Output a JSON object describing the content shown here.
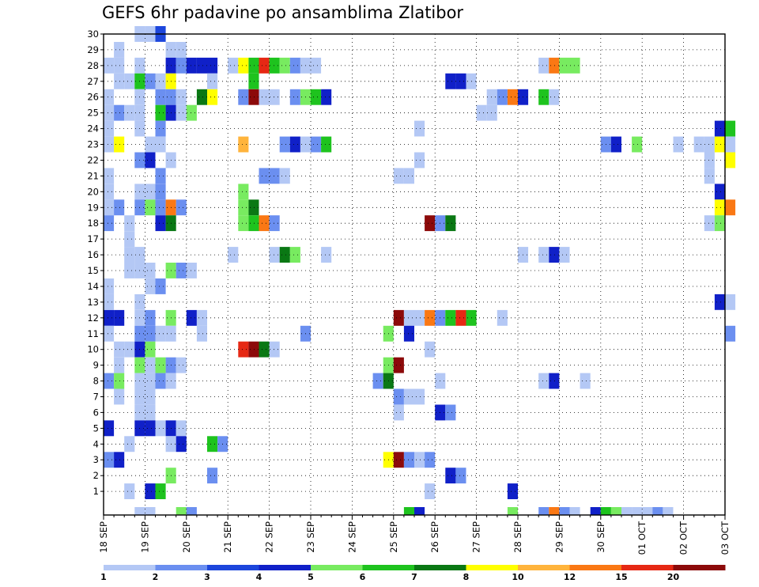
{
  "chart_data": {
    "type": "heatmap",
    "title": "GEFS 6hr padavine po ansamblima Zlatibor",
    "y_ticks": [
      "1",
      "2",
      "3",
      "4",
      "5",
      "6",
      "7",
      "8",
      "9",
      "10",
      "11",
      "12",
      "13",
      "14",
      "15",
      "16",
      "17",
      "18",
      "19",
      "20",
      "21",
      "22",
      "23",
      "24",
      "25",
      "26",
      "27",
      "28",
      "29",
      "30"
    ],
    "x_ticks": [
      "18 SEP",
      "19 SEP",
      "20 SEP",
      "21 SEP",
      "22 SEP",
      "23 SEP",
      "24 SEP",
      "25 SEP",
      "26 SEP",
      "27 SEP",
      "28 SEP",
      "29 SEP",
      "30 SEP",
      "01 OCT",
      "02 OCT",
      "03 OCT"
    ],
    "x_unit": "6-hour steps",
    "grid": "dotted",
    "colorbar": {
      "labels": [
        "1",
        "2",
        "3",
        "4",
        "5",
        "6",
        "7",
        "8",
        "10",
        "12",
        "15",
        "20"
      ],
      "colors": [
        "#b4c8f5",
        "#6b8ff0",
        "#1c46dc",
        "#1020c8",
        "#78eb60",
        "#1ec31e",
        "#0a7814",
        "#ffff00",
        "#ffb43c",
        "#fa7814",
        "#e62814",
        "#8c0a0a"
      ]
    },
    "cells": [
      [
        30,
        3,
        1
      ],
      [
        30,
        4,
        1
      ],
      [
        30,
        5,
        3
      ],
      [
        29,
        1,
        1
      ],
      [
        29,
        6,
        1
      ],
      [
        29,
        7,
        1
      ],
      [
        28,
        0,
        1
      ],
      [
        28,
        1,
        1
      ],
      [
        28,
        3,
        1
      ],
      [
        28,
        6,
        4
      ],
      [
        28,
        7,
        2
      ],
      [
        28,
        8,
        4
      ],
      [
        28,
        9,
        4
      ],
      [
        28,
        10,
        4
      ],
      [
        28,
        12,
        1
      ],
      [
        28,
        13,
        8
      ],
      [
        28,
        14,
        6
      ],
      [
        28,
        15,
        11
      ],
      [
        28,
        16,
        6
      ],
      [
        28,
        17,
        5
      ],
      [
        28,
        18,
        2
      ],
      [
        28,
        19,
        1
      ],
      [
        28,
        20,
        1
      ],
      [
        28,
        42,
        1
      ],
      [
        28,
        43,
        10
      ],
      [
        28,
        44,
        5
      ],
      [
        28,
        45,
        5
      ],
      [
        27,
        1,
        1
      ],
      [
        27,
        2,
        1
      ],
      [
        27,
        3,
        6
      ],
      [
        27,
        4,
        2
      ],
      [
        27,
        5,
        1
      ],
      [
        27,
        6,
        8
      ],
      [
        27,
        10,
        1
      ],
      [
        27,
        14,
        6
      ],
      [
        27,
        33,
        4
      ],
      [
        27,
        34,
        4
      ],
      [
        27,
        35,
        1
      ],
      [
        26,
        0,
        1
      ],
      [
        26,
        3,
        1
      ],
      [
        26,
        5,
        2
      ],
      [
        26,
        6,
        2
      ],
      [
        26,
        7,
        1
      ],
      [
        26,
        9,
        7
      ],
      [
        26,
        10,
        8
      ],
      [
        26,
        13,
        2
      ],
      [
        26,
        14,
        12
      ],
      [
        26,
        15,
        1
      ],
      [
        26,
        16,
        1
      ],
      [
        26,
        18,
        2
      ],
      [
        26,
        19,
        5
      ],
      [
        26,
        20,
        6
      ],
      [
        26,
        21,
        4
      ],
      [
        26,
        37,
        1
      ],
      [
        26,
        38,
        2
      ],
      [
        26,
        39,
        10
      ],
      [
        26,
        40,
        4
      ],
      [
        26,
        42,
        6
      ],
      [
        26,
        43,
        1
      ],
      [
        25,
        0,
        1
      ],
      [
        25,
        1,
        2
      ],
      [
        25,
        2,
        1
      ],
      [
        25,
        3,
        1
      ],
      [
        25,
        5,
        6
      ],
      [
        25,
        6,
        4
      ],
      [
        25,
        7,
        1
      ],
      [
        25,
        8,
        5
      ],
      [
        25,
        36,
        1
      ],
      [
        25,
        37,
        1
      ],
      [
        24,
        0,
        1
      ],
      [
        24,
        3,
        1
      ],
      [
        24,
        5,
        2
      ],
      [
        24,
        30,
        1
      ],
      [
        24,
        59,
        4
      ],
      [
        24,
        60,
        6
      ],
      [
        23,
        0,
        1
      ],
      [
        23,
        1,
        8
      ],
      [
        23,
        4,
        1
      ],
      [
        23,
        5,
        1
      ],
      [
        23,
        13,
        9
      ],
      [
        23,
        17,
        2
      ],
      [
        23,
        18,
        4
      ],
      [
        23,
        19,
        1
      ],
      [
        23,
        20,
        2
      ],
      [
        23,
        21,
        6
      ],
      [
        23,
        48,
        2
      ],
      [
        23,
        49,
        4
      ],
      [
        23,
        51,
        5
      ],
      [
        23,
        55,
        1
      ],
      [
        23,
        57,
        1
      ],
      [
        23,
        58,
        1
      ],
      [
        23,
        59,
        8
      ],
      [
        23,
        60,
        1
      ],
      [
        22,
        3,
        2
      ],
      [
        22,
        4,
        4
      ],
      [
        22,
        6,
        1
      ],
      [
        22,
        30,
        1
      ],
      [
        22,
        58,
        1
      ],
      [
        22,
        60,
        8
      ],
      [
        21,
        0,
        1
      ],
      [
        21,
        5,
        2
      ],
      [
        21,
        15,
        2
      ],
      [
        21,
        16,
        2
      ],
      [
        21,
        17,
        1
      ],
      [
        21,
        28,
        1
      ],
      [
        21,
        29,
        1
      ],
      [
        21,
        58,
        1
      ],
      [
        20,
        0,
        1
      ],
      [
        20,
        3,
        1
      ],
      [
        20,
        4,
        1
      ],
      [
        20,
        5,
        2
      ],
      [
        20,
        13,
        5
      ],
      [
        20,
        59,
        4
      ],
      [
        19,
        0,
        1
      ],
      [
        19,
        1,
        2
      ],
      [
        19,
        3,
        2
      ],
      [
        19,
        4,
        5
      ],
      [
        19,
        5,
        2
      ],
      [
        19,
        6,
        10
      ],
      [
        19,
        7,
        2
      ],
      [
        19,
        13,
        5
      ],
      [
        19,
        14,
        7
      ],
      [
        19,
        59,
        8
      ],
      [
        19,
        60,
        10
      ],
      [
        18,
        0,
        2
      ],
      [
        18,
        2,
        1
      ],
      [
        18,
        5,
        4
      ],
      [
        18,
        6,
        7
      ],
      [
        18,
        13,
        5
      ],
      [
        18,
        14,
        6
      ],
      [
        18,
        15,
        10
      ],
      [
        18,
        16,
        2
      ],
      [
        18,
        31,
        12
      ],
      [
        18,
        32,
        2
      ],
      [
        18,
        33,
        7
      ],
      [
        18,
        58,
        1
      ],
      [
        18,
        59,
        5
      ],
      [
        17,
        2,
        1
      ],
      [
        16,
        2,
        1
      ],
      [
        16,
        3,
        1
      ],
      [
        16,
        12,
        1
      ],
      [
        16,
        16,
        1
      ],
      [
        16,
        17,
        7
      ],
      [
        16,
        18,
        5
      ],
      [
        16,
        21,
        1
      ],
      [
        16,
        40,
        1
      ],
      [
        16,
        42,
        1
      ],
      [
        16,
        43,
        4
      ],
      [
        16,
        44,
        1
      ],
      [
        15,
        2,
        1
      ],
      [
        15,
        3,
        1
      ],
      [
        15,
        4,
        1
      ],
      [
        15,
        6,
        5
      ],
      [
        15,
        7,
        2
      ],
      [
        15,
        8,
        1
      ],
      [
        14,
        0,
        1
      ],
      [
        14,
        4,
        1
      ],
      [
        14,
        5,
        2
      ],
      [
        13,
        0,
        1
      ],
      [
        13,
        3,
        1
      ],
      [
        13,
        59,
        4
      ],
      [
        13,
        60,
        1
      ],
      [
        12,
        0,
        4
      ],
      [
        12,
        1,
        4
      ],
      [
        12,
        3,
        1
      ],
      [
        12,
        4,
        2
      ],
      [
        12,
        6,
        5
      ],
      [
        12,
        8,
        4
      ],
      [
        12,
        9,
        1
      ],
      [
        12,
        28,
        12
      ],
      [
        12,
        29,
        1
      ],
      [
        12,
        30,
        1
      ],
      [
        12,
        31,
        10
      ],
      [
        12,
        32,
        2
      ],
      [
        12,
        33,
        6
      ],
      [
        12,
        34,
        11
      ],
      [
        12,
        35,
        6
      ],
      [
        12,
        38,
        1
      ],
      [
        11,
        0,
        1
      ],
      [
        11,
        3,
        2
      ],
      [
        11,
        4,
        2
      ],
      [
        11,
        5,
        1
      ],
      [
        11,
        6,
        1
      ],
      [
        11,
        9,
        1
      ],
      [
        11,
        19,
        2
      ],
      [
        11,
        27,
        5
      ],
      [
        11,
        29,
        4
      ],
      [
        11,
        60,
        2
      ],
      [
        10,
        1,
        1
      ],
      [
        10,
        2,
        1
      ],
      [
        10,
        3,
        4
      ],
      [
        10,
        4,
        5
      ],
      [
        10,
        13,
        11
      ],
      [
        10,
        14,
        12
      ],
      [
        10,
        15,
        7
      ],
      [
        10,
        16,
        1
      ],
      [
        10,
        31,
        1
      ],
      [
        9,
        1,
        1
      ],
      [
        9,
        3,
        5
      ],
      [
        9,
        4,
        1
      ],
      [
        9,
        5,
        5
      ],
      [
        9,
        6,
        2
      ],
      [
        9,
        7,
        1
      ],
      [
        9,
        27,
        5
      ],
      [
        9,
        28,
        12
      ],
      [
        8,
        0,
        2
      ],
      [
        8,
        1,
        5
      ],
      [
        8,
        3,
        1
      ],
      [
        8,
        4,
        1
      ],
      [
        8,
        5,
        2
      ],
      [
        8,
        6,
        1
      ],
      [
        8,
        26,
        2
      ],
      [
        8,
        27,
        7
      ],
      [
        8,
        32,
        1
      ],
      [
        8,
        42,
        1
      ],
      [
        8,
        43,
        4
      ],
      [
        8,
        46,
        1
      ],
      [
        7,
        1,
        1
      ],
      [
        7,
        3,
        1
      ],
      [
        7,
        4,
        1
      ],
      [
        7,
        28,
        2
      ],
      [
        7,
        29,
        1
      ],
      [
        7,
        30,
        1
      ],
      [
        6,
        3,
        1
      ],
      [
        6,
        4,
        1
      ],
      [
        6,
        28,
        1
      ],
      [
        6,
        32,
        4
      ],
      [
        6,
        33,
        2
      ],
      [
        5,
        0,
        4
      ],
      [
        5,
        3,
        4
      ],
      [
        5,
        4,
        4
      ],
      [
        5,
        5,
        1
      ],
      [
        5,
        6,
        4
      ],
      [
        5,
        7,
        1
      ],
      [
        4,
        2,
        1
      ],
      [
        4,
        6,
        1
      ],
      [
        4,
        7,
        4
      ],
      [
        4,
        10,
        6
      ],
      [
        4,
        11,
        2
      ],
      [
        3,
        0,
        2
      ],
      [
        3,
        1,
        4
      ],
      [
        3,
        27,
        8
      ],
      [
        3,
        28,
        12
      ],
      [
        3,
        29,
        2
      ],
      [
        3,
        30,
        1
      ],
      [
        3,
        31,
        2
      ],
      [
        2,
        6,
        5
      ],
      [
        2,
        10,
        2
      ],
      [
        2,
        33,
        4
      ],
      [
        2,
        34,
        2
      ],
      [
        1,
        2,
        1
      ],
      [
        1,
        4,
        4
      ],
      [
        1,
        5,
        6
      ],
      [
        1,
        31,
        1
      ],
      [
        1,
        39,
        4
      ]
    ],
    "bottom_row": [
      [
        3,
        1
      ],
      [
        4,
        1
      ],
      [
        7,
        5
      ],
      [
        8,
        2
      ],
      [
        29,
        6
      ],
      [
        30,
        4
      ],
      [
        39,
        5
      ],
      [
        42,
        2
      ],
      [
        43,
        10
      ],
      [
        44,
        2
      ],
      [
        45,
        1
      ],
      [
        47,
        4
      ],
      [
        48,
        6
      ],
      [
        49,
        5
      ],
      [
        50,
        1
      ],
      [
        51,
        1
      ],
      [
        52,
        1
      ],
      [
        53,
        2
      ],
      [
        54,
        1
      ]
    ]
  }
}
